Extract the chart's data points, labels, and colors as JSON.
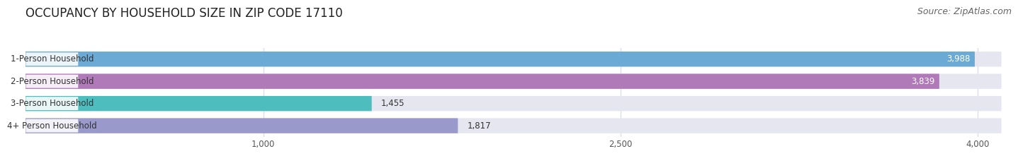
{
  "title": "OCCUPANCY BY HOUSEHOLD SIZE IN ZIP CODE 17110",
  "source": "Source: ZipAtlas.com",
  "categories": [
    "1-Person Household",
    "2-Person Household",
    "3-Person Household",
    "4+ Person Household"
  ],
  "values": [
    3988,
    3839,
    1455,
    1817
  ],
  "bar_colors": [
    "#6aaad4",
    "#b07ab8",
    "#4dbdbd",
    "#9999cc"
  ],
  "bar_bg_color": "#e6e6f0",
  "value_label_color_inside": "#ffffff",
  "value_label_color_outside": "#444444",
  "bar_text_color": "#333333",
  "tick_labels": [
    "1,000",
    "2,500",
    "4,000"
  ],
  "tick_values": [
    1000,
    2500,
    4000
  ],
  "data_max": 4000,
  "xlim_max": 4100,
  "title_fontsize": 12,
  "source_fontsize": 9,
  "bar_fontsize": 8.5,
  "value_fontsize": 8.5,
  "tick_fontsize": 8.5,
  "background_color": "#ffffff",
  "grid_color": "#ddddee"
}
